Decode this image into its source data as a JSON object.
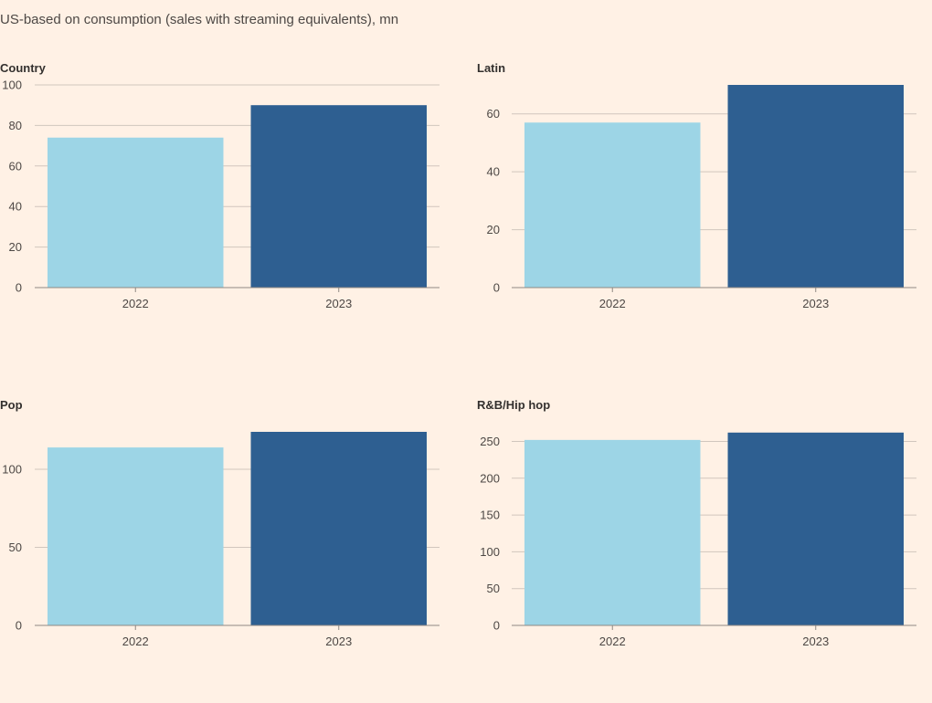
{
  "subtitle": "US-based on consumption (sales with streaming equivalents), mn",
  "colors": {
    "y2022": "#9dd5e6",
    "y2023": "#2e5f91",
    "grid": "#d1c6bd",
    "axis": "#8f8983"
  },
  "chart_data": [
    {
      "type": "bar",
      "title": "Country",
      "categories": [
        "2022",
        "2023"
      ],
      "values": [
        74,
        90
      ],
      "ylim": [
        0,
        100
      ],
      "yticks": [
        0,
        20,
        40,
        60,
        80,
        100
      ]
    },
    {
      "type": "bar",
      "title": "Latin",
      "categories": [
        "2022",
        "2023"
      ],
      "values": [
        57,
        70
      ],
      "ylim": [
        0,
        70
      ],
      "yticks": [
        0,
        20,
        40,
        60
      ]
    },
    {
      "type": "bar",
      "title": "Pop",
      "categories": [
        "2022",
        "2023"
      ],
      "values": [
        114,
        124
      ],
      "ylim": [
        0,
        124
      ],
      "yticks": [
        0,
        50,
        100
      ]
    },
    {
      "type": "bar",
      "title": "R&B/Hip hop",
      "categories": [
        "2022",
        "2023"
      ],
      "values": [
        252,
        262
      ],
      "ylim": [
        0,
        263
      ],
      "yticks": [
        0,
        50,
        100,
        150,
        200,
        250
      ]
    }
  ]
}
